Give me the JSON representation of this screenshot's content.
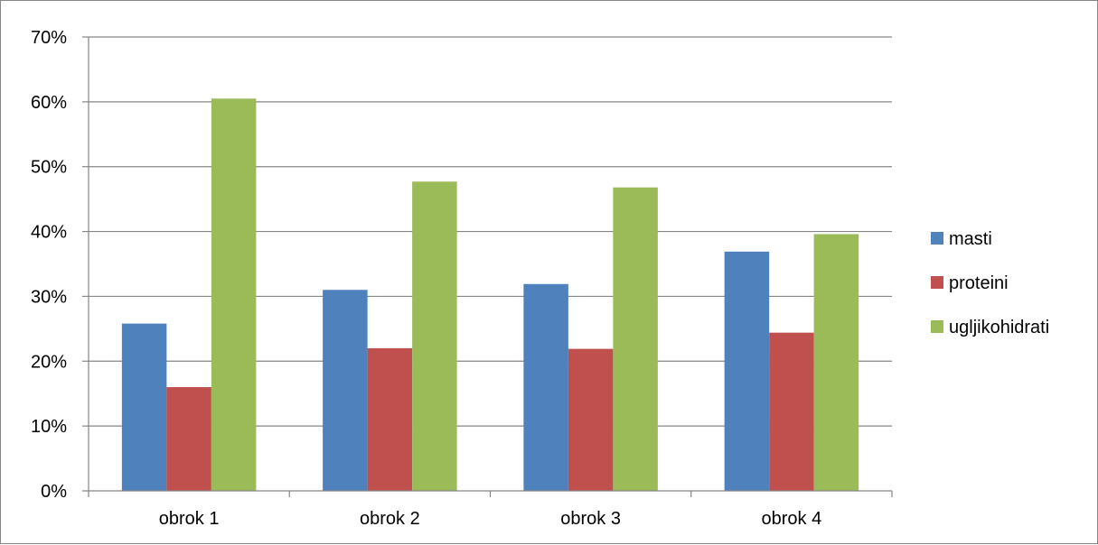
{
  "chart_data": {
    "type": "bar",
    "categories": [
      "obrok 1",
      "obrok 2",
      "obrok 3",
      "obrok 4"
    ],
    "series": [
      {
        "name": "masti",
        "values": [
          25.8,
          31.0,
          31.9,
          36.9
        ],
        "color": "#4f81bd"
      },
      {
        "name": "proteini",
        "values": [
          16.0,
          22.0,
          21.9,
          24.4
        ],
        "color": "#c0504d"
      },
      {
        "name": "ugljikohidrati",
        "values": [
          60.5,
          47.7,
          46.8,
          39.6
        ],
        "color": "#9bbb59"
      }
    ],
    "title": "",
    "xlabel": "",
    "ylabel": "",
    "ylim": [
      0,
      70
    ],
    "yticks": [
      0,
      10,
      20,
      30,
      40,
      50,
      60,
      70
    ],
    "ytick_labels": [
      "0%",
      "10%",
      "20%",
      "30%",
      "40%",
      "50%",
      "60%",
      "70%"
    ],
    "grid": true,
    "legend_position": "right"
  }
}
